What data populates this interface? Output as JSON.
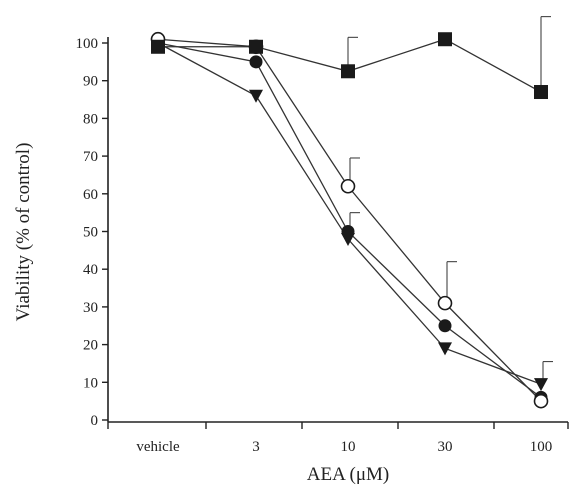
{
  "chart_data": {
    "type": "line",
    "title": "",
    "xlabel": "AEA (μM)",
    "ylabel": "Viability (% of control)",
    "categories": [
      "vehicle",
      "3",
      "10",
      "30",
      "100"
    ],
    "ylim": [
      0,
      100
    ],
    "yticks": [
      0,
      10,
      20,
      30,
      40,
      50,
      60,
      70,
      80,
      90,
      100
    ],
    "grid": false,
    "legend": "none",
    "series": [
      {
        "marker": "square-filled",
        "values": [
          99,
          99,
          92.5,
          101,
          87
        ],
        "error_up": [
          null,
          null,
          9,
          null,
          20
        ]
      },
      {
        "marker": "circle-open",
        "values": [
          101,
          99,
          62,
          31,
          5
        ],
        "error_up": [
          null,
          null,
          7.5,
          11,
          null
        ]
      },
      {
        "marker": "circle-filled",
        "values": [
          100,
          95,
          50,
          25,
          6
        ],
        "error_up": [
          null,
          null,
          5,
          null,
          null
        ]
      },
      {
        "marker": "triangle-down-filled",
        "values": [
          100,
          86,
          48,
          19,
          9.5
        ],
        "error_up": [
          null,
          null,
          null,
          null,
          6
        ]
      }
    ]
  }
}
